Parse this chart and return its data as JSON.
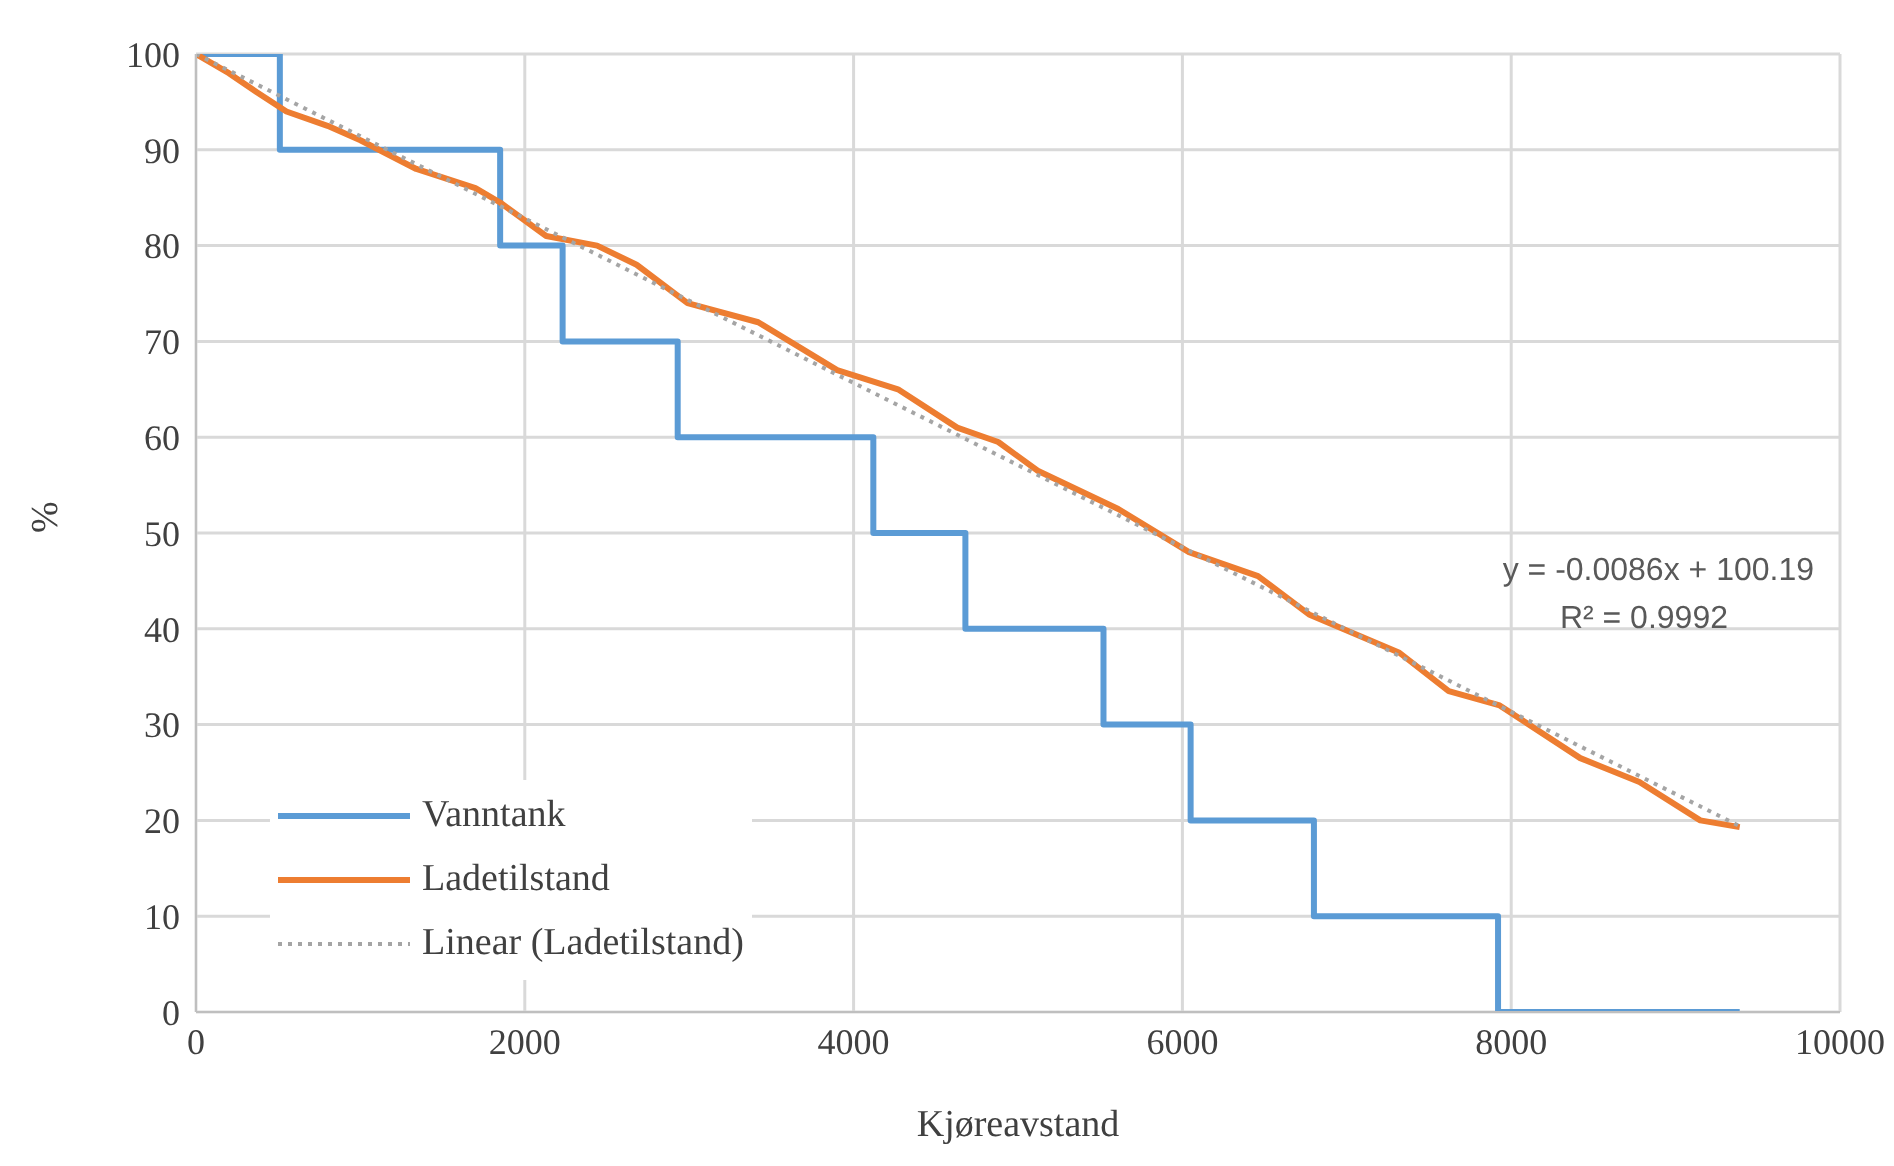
{
  "chart_data": {
    "type": "line",
    "xlabel": "Kjøreavstand",
    "ylabel": "%",
    "xlim": [
      0,
      10000
    ],
    "xticks": [
      0,
      2000,
      4000,
      6000,
      8000,
      10000
    ],
    "ylim": [
      0,
      100
    ],
    "yticks": [
      0,
      10,
      20,
      30,
      40,
      50,
      60,
      70,
      80,
      90,
      100
    ],
    "grid": true,
    "legend": "bottom left",
    "marker": "none",
    "annotations": [
      "y = -0.0086x + 100.19",
      "R² = 0.9992"
    ],
    "series": [
      {
        "name": "Vanntank",
        "type": "step",
        "color": "#5b9bd5",
        "line_style": "solid",
        "x": [
          0,
          510,
          1850,
          2230,
          2930,
          4120,
          4680,
          5520,
          6050,
          6800,
          7920,
          9390
        ],
        "values": [
          100,
          90,
          80,
          70,
          60,
          50,
          40,
          30,
          20,
          10,
          0,
          0
        ]
      },
      {
        "name": "Ladetilstand",
        "type": "line",
        "color": "#ed7d31",
        "line_style": "solid",
        "x": [
          0,
          200,
          370,
          550,
          800,
          1000,
          1340,
          1700,
          1850,
          2130,
          2440,
          2680,
          2990,
          3420,
          3900,
          4270,
          4630,
          4880,
          5120,
          5610,
          6040,
          6460,
          6770,
          7320,
          7620,
          7930,
          8420,
          8780,
          9150,
          9390
        ],
        "values": [
          100,
          98,
          96,
          94,
          92.5,
          91,
          88,
          86,
          84.5,
          81,
          80,
          78,
          74,
          72,
          67,
          65,
          61,
          59.5,
          56.5,
          52.5,
          48,
          45.5,
          41.5,
          37.5,
          33.5,
          32,
          26.5,
          24,
          20,
          19.3
        ]
      },
      {
        "name": "Linear (Ladetilstand)",
        "type": "line",
        "color": "#a5a5a5",
        "line_style": "dotted",
        "x": [
          0,
          9390
        ],
        "values": [
          100,
          19.4
        ]
      }
    ]
  }
}
